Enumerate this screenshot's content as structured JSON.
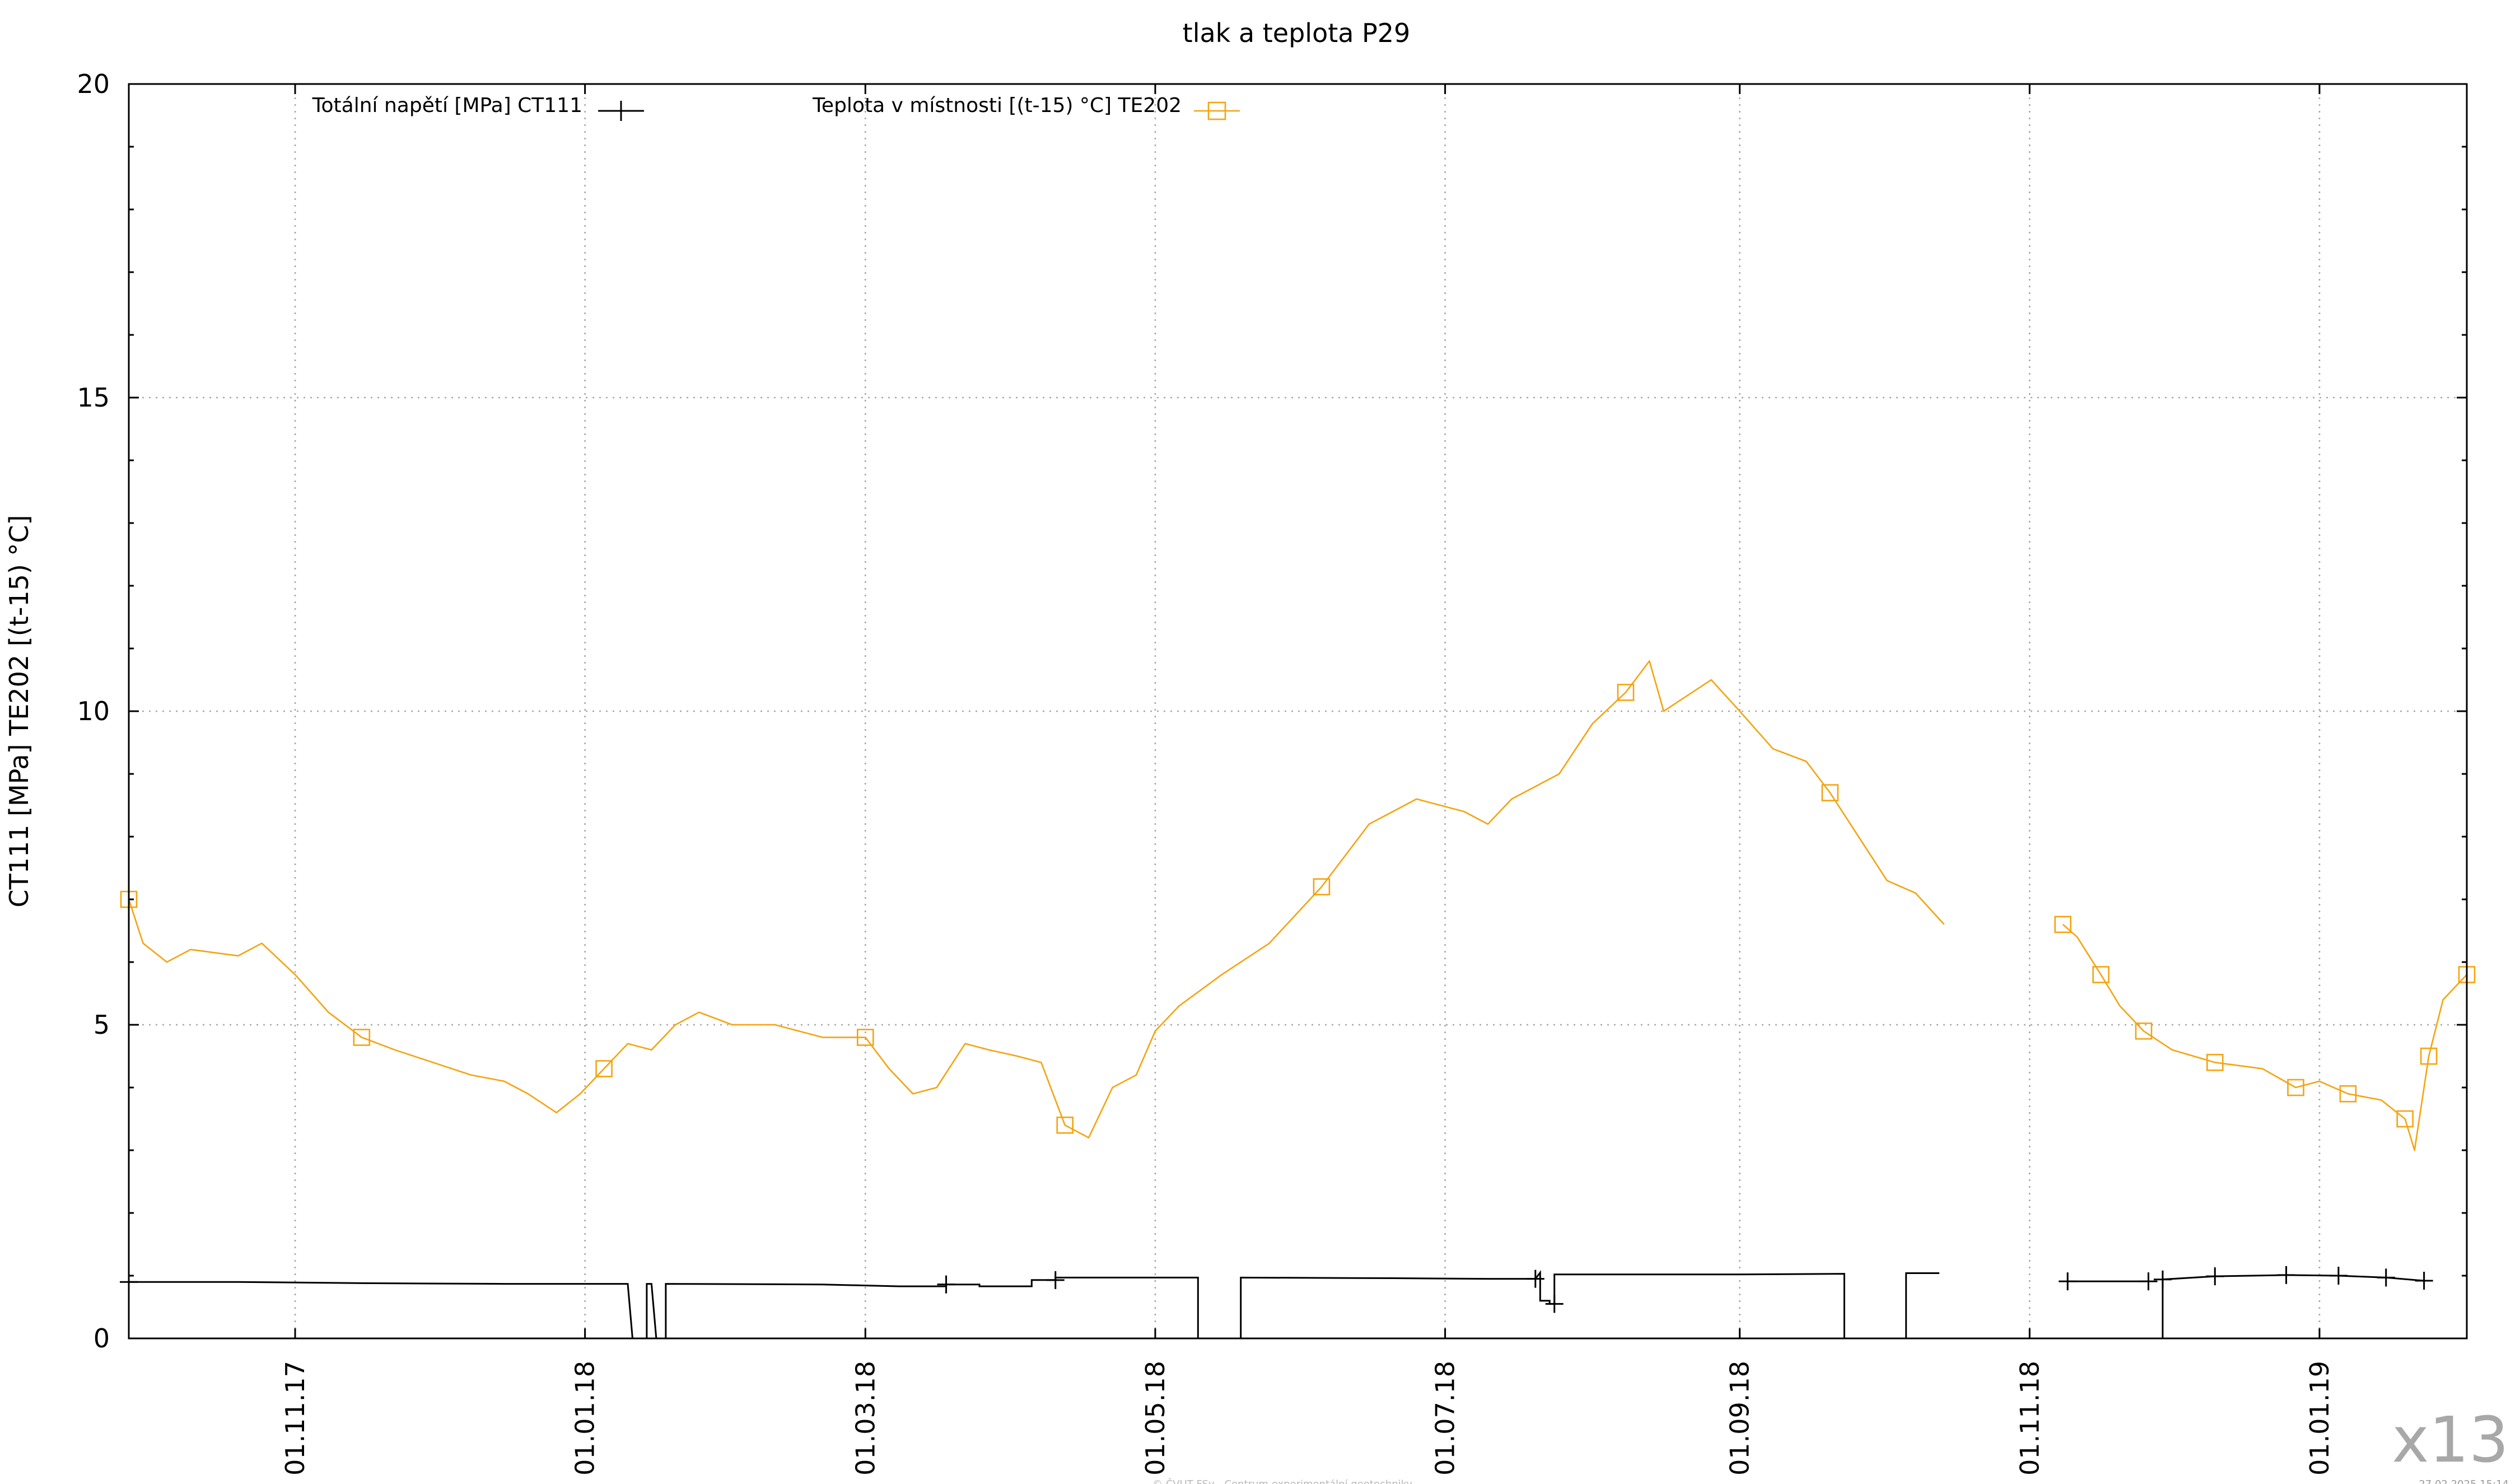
{
  "chart_data": {
    "type": "line",
    "title": "tlak a teplota P29",
    "xlabel": "",
    "ylabel": "CT111 [MPa] TE202 [(t-15) °C]",
    "ylim": [
      0,
      20
    ],
    "xlim": [
      "2017-09-27",
      "2019-02-01"
    ],
    "yticks": [
      "0",
      "5",
      "10",
      "15",
      "20"
    ],
    "y_minor_tick_step": 1,
    "xticks": [
      {
        "date": "2017-11-01",
        "label": "01.11.17"
      },
      {
        "date": "2018-01-01",
        "label": "01.01.18"
      },
      {
        "date": "2018-03-01",
        "label": "01.03.18"
      },
      {
        "date": "2018-05-01",
        "label": "01.05.18"
      },
      {
        "date": "2018-07-01",
        "label": "01.07.18"
      },
      {
        "date": "2018-09-01",
        "label": "01.09.18"
      },
      {
        "date": "2018-11-01",
        "label": "01.11.18"
      },
      {
        "date": "2019-01-01",
        "label": "01.01.19"
      }
    ],
    "grid": true,
    "legend_position": "top",
    "series": [
      {
        "name": "Totální napětí [MPa] CT111",
        "color": "#000000",
        "marker": "plus",
        "segments": [
          [
            [
              "2017-09-27",
              0.9
            ],
            [
              "2017-10-20",
              0.9
            ],
            [
              "2017-11-15",
              0.88
            ],
            [
              "2017-12-15",
              0.87
            ],
            [
              "2018-01-10",
              0.87
            ],
            [
              "2018-01-11",
              0.0
            ],
            [
              "2018-01-14",
              0.0
            ],
            [
              "2018-01-14",
              0.87
            ],
            [
              "2018-01-15",
              0.87
            ],
            [
              "2018-01-16",
              0.0
            ],
            [
              "2018-01-18",
              0.0
            ],
            [
              "2018-01-18",
              0.87
            ],
            [
              "2018-02-20",
              0.86
            ],
            [
              "2018-03-08",
              0.83
            ],
            [
              "2018-03-18",
              0.83
            ],
            [
              "2018-03-18",
              0.86
            ],
            [
              "2018-03-25",
              0.86
            ],
            [
              "2018-03-25",
              0.83
            ],
            [
              "2018-04-05",
              0.83
            ],
            [
              "2018-04-05",
              0.93
            ],
            [
              "2018-04-10",
              0.93
            ],
            [
              "2018-04-10",
              0.97
            ],
            [
              "2018-05-06",
              0.97
            ],
            [
              "2018-05-10",
              0.97
            ],
            [
              "2018-05-10",
              0.0
            ],
            [
              "2018-05-17",
              0.0
            ],
            [
              "2018-05-19",
              0.0
            ],
            [
              "2018-05-19",
              0.97
            ],
            [
              "2018-06-20",
              0.96
            ],
            [
              "2018-07-10",
              0.95
            ],
            [
              "2018-07-20",
              0.95
            ],
            [
              "2018-07-21",
              1.05
            ],
            [
              "2018-07-21",
              0.6
            ],
            [
              "2018-07-23",
              0.6
            ],
            [
              "2018-07-23",
              0.55
            ],
            [
              "2018-07-24",
              0.55
            ],
            [
              "2018-07-24",
              1.02
            ],
            [
              "2018-09-01",
              1.02
            ],
            [
              "2018-09-23",
              1.03
            ],
            [
              "2018-09-23",
              0.0
            ],
            [
              "2018-10-06",
              0.0
            ],
            [
              "2018-10-06",
              1.04
            ],
            [
              "2018-10-13",
              1.04
            ]
          ],
          [
            [
              "2018-11-09",
              0.91
            ],
            [
              "2018-11-26",
              0.91
            ]
          ],
          [
            [
              "2018-11-29",
              0.0
            ],
            [
              "2018-11-29",
              0.94
            ],
            [
              "2018-12-10",
              0.99
            ],
            [
              "2018-12-25",
              1.01
            ],
            [
              "2019-01-05",
              1.0
            ],
            [
              "2019-01-15",
              0.97
            ],
            [
              "2019-01-23",
              0.92
            ]
          ]
        ]
      },
      {
        "name": "Teplota v místnosti [(t-15) °C] TE202",
        "color": "#f5a30e",
        "marker": "square",
        "segments": [
          [
            [
              "2017-09-27",
              7.0
            ],
            [
              "2017-09-30",
              6.3
            ],
            [
              "2017-10-05",
              6.0
            ],
            [
              "2017-10-10",
              6.2
            ],
            [
              "2017-10-20",
              6.1
            ],
            [
              "2017-10-25",
              6.3
            ],
            [
              "2017-11-01",
              5.8
            ],
            [
              "2017-11-08",
              5.2
            ],
            [
              "2017-11-15",
              4.8
            ],
            [
              "2017-11-22",
              4.6
            ],
            [
              "2017-11-30",
              4.4
            ],
            [
              "2017-12-08",
              4.2
            ],
            [
              "2017-12-15",
              4.1
            ],
            [
              "2017-12-20",
              3.9
            ],
            [
              "2017-12-26",
              3.6
            ],
            [
              "2017-12-31",
              3.9
            ],
            [
              "2018-01-05",
              4.3
            ],
            [
              "2018-01-10",
              4.7
            ],
            [
              "2018-01-15",
              4.6
            ],
            [
              "2018-01-20",
              5.0
            ],
            [
              "2018-01-25",
              5.2
            ],
            [
              "2018-02-01",
              5.0
            ],
            [
              "2018-02-10",
              5.0
            ],
            [
              "2018-02-20",
              4.8
            ],
            [
              "2018-03-01",
              4.8
            ],
            [
              "2018-03-06",
              4.3
            ],
            [
              "2018-03-11",
              3.9
            ],
            [
              "2018-03-16",
              4.0
            ],
            [
              "2018-03-22",
              4.7
            ],
            [
              "2018-03-27",
              4.6
            ],
            [
              "2018-04-02",
              4.5
            ],
            [
              "2018-04-07",
              4.4
            ],
            [
              "2018-04-12",
              3.4
            ],
            [
              "2018-04-17",
              3.2
            ],
            [
              "2018-04-22",
              4.0
            ],
            [
              "2018-04-27",
              4.2
            ],
            [
              "2018-05-01",
              4.9
            ],
            [
              "2018-05-06",
              5.3
            ],
            [
              "2018-05-15",
              5.8
            ],
            [
              "2018-05-25",
              6.3
            ],
            [
              "2018-06-05",
              7.2
            ],
            [
              "2018-06-15",
              8.2
            ],
            [
              "2018-06-25",
              8.6
            ],
            [
              "2018-07-05",
              8.4
            ],
            [
              "2018-07-10",
              8.2
            ],
            [
              "2018-07-15",
              8.6
            ],
            [
              "2018-07-25",
              9.0
            ],
            [
              "2018-08-01",
              9.8
            ],
            [
              "2018-08-08",
              10.3
            ],
            [
              "2018-08-13",
              10.8
            ],
            [
              "2018-08-16",
              10.0
            ],
            [
              "2018-08-20",
              10.2
            ],
            [
              "2018-08-26",
              10.5
            ],
            [
              "2018-09-01",
              10.0
            ],
            [
              "2018-09-08",
              9.4
            ],
            [
              "2018-09-15",
              9.2
            ],
            [
              "2018-09-20",
              8.7
            ],
            [
              "2018-09-26",
              8.0
            ],
            [
              "2018-10-02",
              7.3
            ],
            [
              "2018-10-08",
              7.1
            ],
            [
              "2018-10-14",
              6.6
            ]
          ],
          [
            [
              "2018-11-08",
              6.6
            ],
            [
              "2018-11-11",
              6.4
            ],
            [
              "2018-11-16",
              5.8
            ],
            [
              "2018-11-20",
              5.3
            ],
            [
              "2018-11-25",
              4.9
            ],
            [
              "2018-12-01",
              4.6
            ],
            [
              "2018-12-10",
              4.4
            ],
            [
              "2018-12-20",
              4.3
            ],
            [
              "2018-12-27",
              4.0
            ],
            [
              "2019-01-01",
              4.1
            ],
            [
              "2019-01-07",
              3.9
            ],
            [
              "2019-01-14",
              3.8
            ],
            [
              "2019-01-19",
              3.5
            ],
            [
              "2019-01-21",
              3.0
            ],
            [
              "2019-01-24",
              4.5
            ],
            [
              "2019-01-27",
              5.4
            ],
            [
              "2019-02-01",
              5.8
            ]
          ]
        ]
      }
    ]
  },
  "footer": {
    "copyright": "© ČVUT FSv - Centrum experimentální geotechniky",
    "timestamp": "27.02.2025 15:14",
    "badge": "x13"
  }
}
